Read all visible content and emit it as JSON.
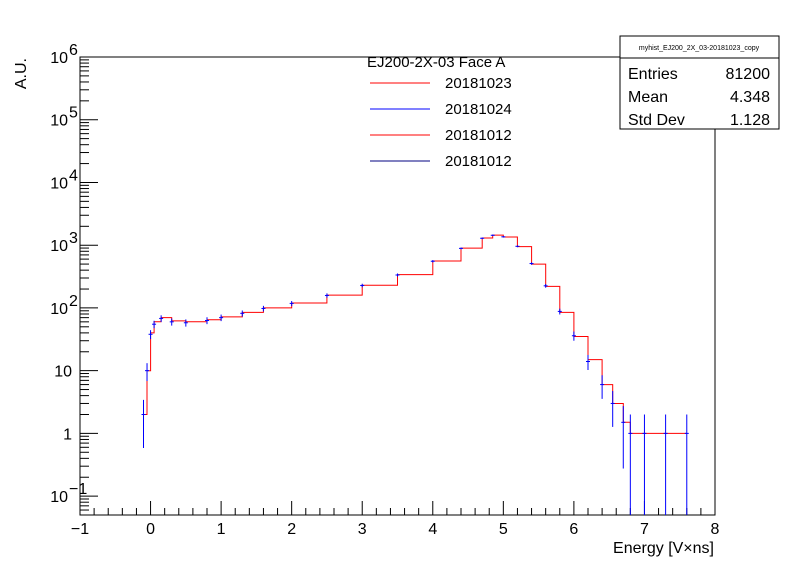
{
  "chart_data": {
    "type": "line",
    "title": "",
    "xlabel": "Energy [V×ns]",
    "ylabel": "A.U.",
    "xlim": [
      -1,
      8
    ],
    "ylim": [
      0.05,
      1000000
    ],
    "yscale": "log",
    "x_ticks": [
      -1,
      0,
      1,
      2,
      3,
      4,
      5,
      6,
      7,
      8
    ],
    "y_ticks": [
      {
        "value": 0.1,
        "base": "10",
        "exp": "−1"
      },
      {
        "value": 1,
        "base": "1",
        "exp": ""
      },
      {
        "value": 10,
        "base": "10",
        "exp": ""
      },
      {
        "value": 100,
        "base": "10",
        "exp": "2"
      },
      {
        "value": 1000,
        "base": "10",
        "exp": "3"
      },
      {
        "value": 10000,
        "base": "10",
        "exp": "4"
      },
      {
        "value": 100000,
        "base": "10",
        "exp": "5"
      },
      {
        "value": 1000000,
        "base": "10",
        "exp": "6"
      }
    ],
    "legend": {
      "title": "EJ200-2X-03 Face A",
      "placement": "top-center"
    },
    "series": [
      {
        "name": "20181023",
        "color": "#ff0000",
        "style": "step",
        "points": [
          [
            -0.2,
            0
          ],
          [
            -0.1,
            2
          ],
          [
            -0.05,
            10
          ],
          [
            0.0,
            40
          ],
          [
            0.05,
            60
          ],
          [
            0.15,
            70
          ],
          [
            0.3,
            62
          ],
          [
            0.5,
            60
          ],
          [
            0.8,
            65
          ],
          [
            1.0,
            72
          ],
          [
            1.3,
            85
          ],
          [
            1.6,
            100
          ],
          [
            2.0,
            120
          ],
          [
            2.5,
            160
          ],
          [
            3.0,
            230
          ],
          [
            3.5,
            340
          ],
          [
            4.0,
            560
          ],
          [
            4.4,
            900
          ],
          [
            4.7,
            1300
          ],
          [
            4.85,
            1450
          ],
          [
            5.0,
            1350
          ],
          [
            5.2,
            950
          ],
          [
            5.4,
            500
          ],
          [
            5.6,
            220
          ],
          [
            5.8,
            85
          ],
          [
            6.0,
            35
          ],
          [
            6.2,
            15
          ],
          [
            6.4,
            6
          ],
          [
            6.55,
            3
          ],
          [
            6.7,
            1.5
          ],
          [
            6.8,
            1
          ],
          [
            7.0,
            1
          ],
          [
            7.3,
            1
          ],
          [
            7.6,
            1
          ]
        ]
      },
      {
        "name": "20181024",
        "color": "#0000ff",
        "style": "errorbar",
        "points": [
          [
            -0.2,
            0
          ],
          [
            -0.1,
            2
          ],
          [
            -0.05,
            10
          ],
          [
            0.0,
            38
          ],
          [
            0.05,
            55
          ],
          [
            0.15,
            68
          ],
          [
            0.3,
            60
          ],
          [
            0.5,
            58
          ],
          [
            0.8,
            63
          ],
          [
            1.0,
            70
          ],
          [
            1.3,
            82
          ],
          [
            1.6,
            98
          ],
          [
            2.0,
            118
          ],
          [
            2.5,
            158
          ],
          [
            3.0,
            228
          ],
          [
            3.5,
            335
          ],
          [
            4.0,
            555
          ],
          [
            4.4,
            890
          ],
          [
            4.7,
            1290
          ],
          [
            4.85,
            1440
          ],
          [
            5.0,
            1360
          ],
          [
            5.2,
            960
          ],
          [
            5.4,
            510
          ],
          [
            5.6,
            225
          ],
          [
            5.8,
            88
          ],
          [
            6.0,
            36
          ],
          [
            6.2,
            14
          ],
          [
            6.4,
            6
          ],
          [
            6.55,
            3
          ],
          [
            6.7,
            1.5
          ],
          [
            6.8,
            1
          ],
          [
            7.0,
            1
          ],
          [
            7.3,
            1
          ],
          [
            7.6,
            1
          ]
        ]
      },
      {
        "name": "20181012",
        "color": "#ff0000",
        "style": "step",
        "points": []
      },
      {
        "name": "20181012",
        "color": "#000080",
        "style": "step",
        "points": []
      }
    ]
  },
  "stats_box": {
    "title": "myhist_EJ200_2X_03-20181023_copy",
    "rows": [
      {
        "label": "Entries",
        "value": "81200"
      },
      {
        "label": "Mean",
        "value": "4.348"
      },
      {
        "label": "Std Dev",
        "value": "1.128"
      }
    ]
  }
}
